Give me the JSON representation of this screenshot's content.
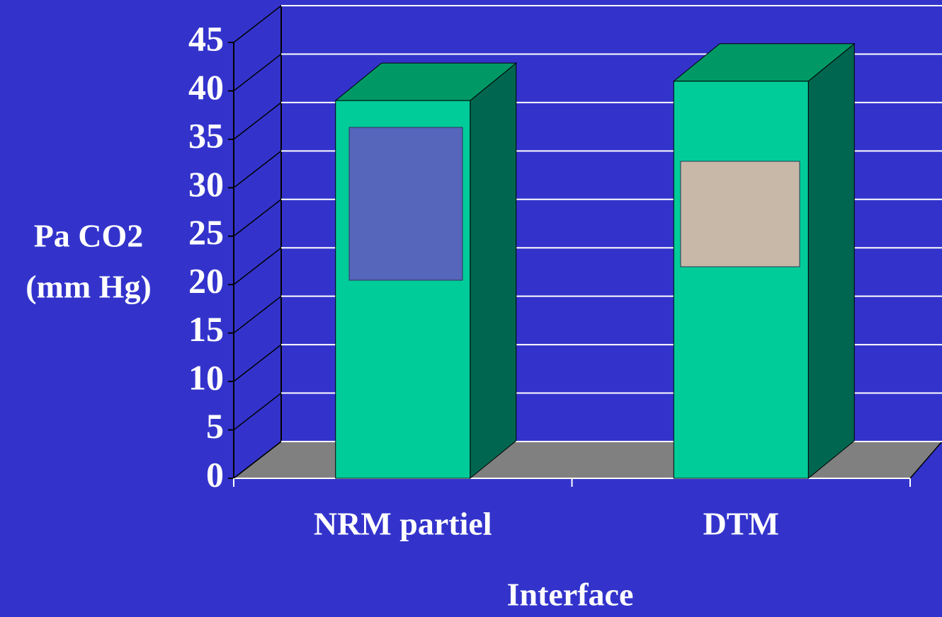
{
  "chart_data": {
    "type": "bar3d",
    "y_label": [
      "Pa CO2",
      "(mm Hg)"
    ],
    "x_label": "Interface",
    "categories": [
      "NRM partiel",
      "DTM"
    ],
    "values": [
      39,
      41
    ],
    "color": "#00cc99",
    "ylim": [
      0,
      45
    ],
    "yticks": [
      0,
      5,
      10,
      15,
      20,
      25,
      30,
      35,
      40,
      45
    ],
    "grid": true
  }
}
